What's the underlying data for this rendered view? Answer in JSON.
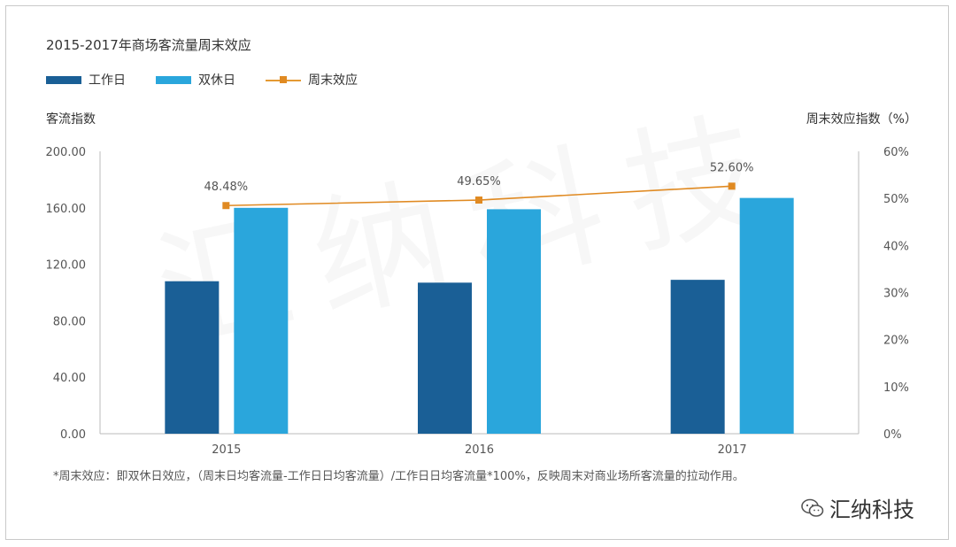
{
  "chart_data": {
    "type": "bar",
    "title": "2015-2017年商场客流量周末效应",
    "categories": [
      "2015",
      "2016",
      "2017"
    ],
    "series": [
      {
        "name": "工作日",
        "type": "bar",
        "axis": "left",
        "values": [
          108,
          107,
          109
        ],
        "color": "#1a5f96"
      },
      {
        "name": "双休日",
        "type": "bar",
        "axis": "left",
        "values": [
          160,
          159,
          167
        ],
        "color": "#2aa6dc"
      },
      {
        "name": "周末效应",
        "type": "line",
        "axis": "right",
        "values": [
          48.48,
          49.65,
          52.6
        ],
        "labels": [
          "48.48%",
          "49.65%",
          "52.60%"
        ],
        "color": "#e08a22"
      }
    ],
    "ylabel": "客流指数",
    "y2label": "周末效应指数（%）",
    "ylim": [
      0,
      200
    ],
    "y2lim": [
      0,
      60
    ],
    "yticks": [
      "0.00",
      "40.00",
      "80.00",
      "120.00",
      "160.00",
      "200.00"
    ],
    "y2ticks": [
      "0%",
      "10%",
      "20%",
      "30%",
      "40%",
      "50%",
      "60%"
    ],
    "legend_position": "top-left",
    "grid": false
  },
  "footnote": "*周末效应：即双休日效应，（周末日均客流量-工作日日均客流量）/工作日日均客流量*100%，反映周末对商业场所客流量的拉动作用。",
  "watermark": {
    "text": "汇纳科技",
    "background_text": "汇纳科技"
  }
}
